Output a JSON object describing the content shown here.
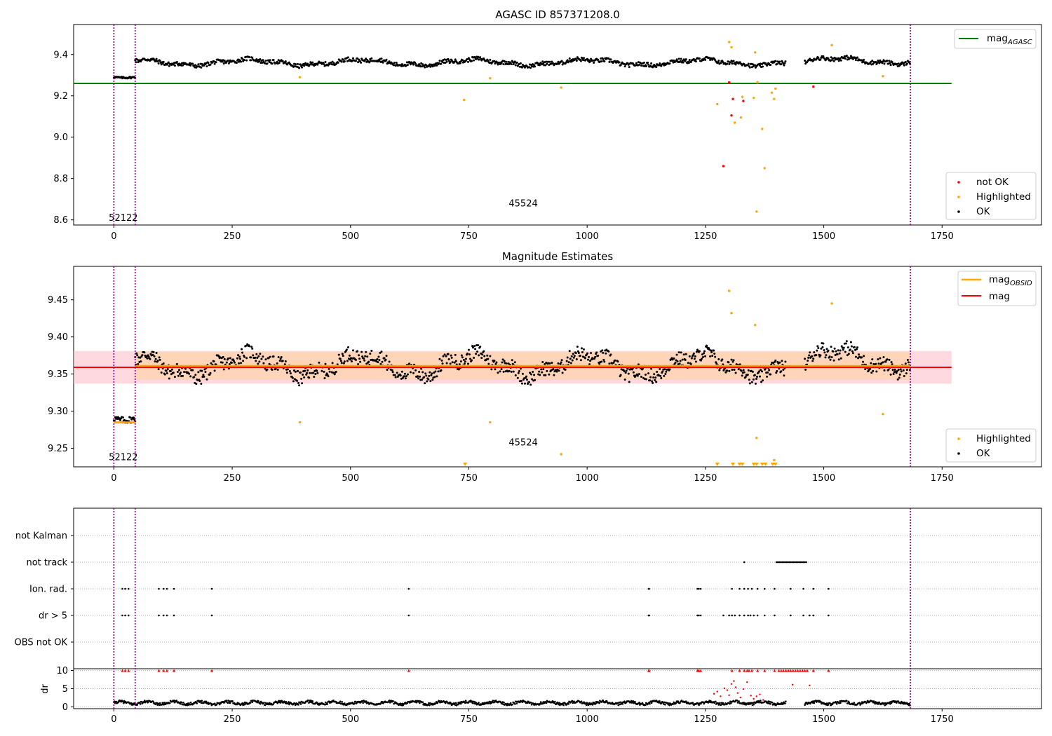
{
  "colors": {
    "ok": "#000000",
    "not_ok": "#ff0000",
    "highlighted": "#ffa500",
    "mag_agasc_line": "#008000",
    "mag_line": "#ff0000",
    "mag_obsid_line": "#ffa500",
    "obsid_divider": "#800080",
    "red_band": "#ffc0cb",
    "orange_band": "#ffd3b2",
    "grid": "#b0b0b0"
  },
  "chart_data": [
    {
      "type": "scatter",
      "title": "AGASC ID 857371208.0",
      "xlabel": "",
      "ylabel": "",
      "xlim": [
        -85,
        1960
      ],
      "ylim": [
        8.575,
        9.545
      ],
      "xticks": [
        0,
        250,
        500,
        750,
        1000,
        1250,
        1500,
        1750
      ],
      "yticks": [
        8.6,
        8.8,
        9.0,
        9.2,
        9.4
      ],
      "xtick_labels": [
        "0",
        "250",
        "500",
        "750",
        "1000",
        "1250",
        "1500",
        "1750"
      ],
      "ytick_labels": [
        "8.6",
        "8.8",
        "9.0",
        "9.2",
        "9.4"
      ],
      "hlines": [
        {
          "name": "mag_AGASC",
          "y": 9.26,
          "x": [
            -85,
            1770
          ]
        }
      ],
      "obsid_boundaries": [
        0,
        45,
        1683
      ],
      "obsid_labels": [
        {
          "text": "52122",
          "x": 20,
          "y": 8.595
        },
        {
          "text": "45524",
          "x": 865,
          "y": 8.665
        }
      ],
      "ok_series": {
        "name": "OK",
        "segments": [
          {
            "x": [
              0,
              45
            ],
            "base": 9.285,
            "amp": 0.01
          },
          {
            "x": [
              45,
              1420
            ],
            "base": 9.362,
            "amp": 0.022
          },
          {
            "x": [
              1460,
              1683
            ],
            "base": 9.37,
            "amp": 0.022
          }
        ]
      },
      "highlighted": {
        "name": "Highlighted",
        "x": [
          393,
          740,
          795,
          945,
          1275,
          1300,
          1305,
          1312,
          1325,
          1328,
          1352,
          1355,
          1358,
          1360,
          1370,
          1375,
          1390,
          1395,
          1398,
          1517,
          1625
        ],
        "y": [
          9.29,
          9.18,
          9.285,
          9.24,
          9.16,
          9.46,
          9.435,
          9.07,
          9.095,
          9.195,
          9.19,
          9.41,
          8.64,
          9.265,
          9.04,
          8.85,
          9.215,
          9.185,
          9.235,
          9.445,
          9.295
        ]
      },
      "not_ok": {
        "name": "not OK",
        "x": [
          1288,
          1300,
          1305,
          1308,
          1330,
          1478
        ],
        "y": [
          8.86,
          9.265,
          9.105,
          9.185,
          9.175,
          9.245
        ]
      },
      "legend_top": [
        {
          "label": "mag",
          "sub": "AGASC",
          "color": "#008000"
        }
      ],
      "legend_bottom": [
        "not OK",
        "Highlighted",
        "OK"
      ]
    },
    {
      "type": "scatter",
      "title": "Magnitude Estimates",
      "xlabel": "",
      "ylabel": "",
      "xlim": [
        -85,
        1960
      ],
      "ylim": [
        9.225,
        9.495
      ],
      "xticks": [
        0,
        250,
        500,
        750,
        1000,
        1250,
        1500,
        1750
      ],
      "yticks": [
        9.25,
        9.3,
        9.35,
        9.4,
        9.45
      ],
      "xtick_labels": [
        "0",
        "250",
        "500",
        "750",
        "1000",
        "1250",
        "1500",
        "1750"
      ],
      "ytick_labels": [
        "9.25",
        "9.30",
        "9.35",
        "9.40",
        "9.45"
      ],
      "mag": {
        "y": 9.359,
        "band": [
          9.337,
          9.381
        ],
        "x": [
          -85,
          1770
        ]
      },
      "mag_obsid": [
        {
          "x": [
            0,
            45
          ],
          "y": 9.285,
          "band": [
            9.283,
            9.288
          ]
        },
        {
          "x": [
            45,
            1683
          ],
          "y": 9.361,
          "band": [
            9.342,
            9.38
          ]
        }
      ],
      "obsid_boundaries": [
        0,
        45,
        1683
      ],
      "obsid_labels": [
        {
          "text": "52122",
          "x": 20,
          "y": 9.234
        },
        {
          "text": "45524",
          "x": 865,
          "y": 9.254
        }
      ],
      "highlighted": {
        "name": "Highlighted",
        "x": [
          393,
          795,
          945,
          1300,
          1305,
          1355,
          1358,
          1395,
          1517,
          1625
        ],
        "y": [
          9.285,
          9.285,
          9.242,
          9.462,
          9.432,
          9.416,
          9.264,
          9.234,
          9.445,
          9.296
        ]
      },
      "clipped_markers_x": [
        742,
        1275,
        1308,
        1322,
        1328,
        1352,
        1358,
        1370,
        1377,
        1392,
        1398
      ],
      "legend_top": [
        {
          "label": "mag",
          "sub": "OBSID",
          "color": "#ffa500"
        },
        {
          "label": "mag",
          "sub": "",
          "color": "#ff0000"
        }
      ],
      "legend_bottom": [
        "Highlighted",
        "OK"
      ]
    },
    {
      "type": "scatter",
      "title": "",
      "xlim": [
        -85,
        1960
      ],
      "categories": [
        "not Kalman",
        "not track",
        "Ion. rad.",
        "dr > 5",
        "OBS not OK"
      ],
      "flags": {
        "not Kalman": [],
        "not track": [
          1332,
          1400,
          1403,
          1406,
          1409,
          1412,
          1415,
          1418,
          1421,
          1424,
          1427,
          1430,
          1433,
          1436,
          1439,
          1442,
          1445,
          1448,
          1451,
          1454,
          1457,
          1460,
          1463
        ],
        "Ion. rad.": [
          18,
          24,
          31,
          95,
          105,
          112,
          127,
          207,
          623,
          1130,
          1131,
          1233,
          1236,
          1240,
          1306,
          1322,
          1332,
          1340,
          1348,
          1360,
          1375,
          1396,
          1430,
          1457,
          1478,
          1510
        ],
        "dr > 5": [
          18,
          24,
          31,
          95,
          105,
          112,
          127,
          207,
          623,
          1130,
          1131,
          1233,
          1236,
          1240,
          1288,
          1300,
          1306,
          1312,
          1322,
          1332,
          1340,
          1345,
          1352,
          1360,
          1375,
          1396,
          1430,
          1457,
          1470,
          1478,
          1510
        ],
        "OBS not OK": []
      },
      "dr_ylabel": "dr",
      "dr_ylim": [
        -0.5,
        10.5
      ],
      "dr_yticks": [
        0,
        5,
        10
      ],
      "dr_ytick_labels": [
        "0",
        "5",
        "10"
      ],
      "dr_red_clipped_x": [
        18,
        24,
        31,
        95,
        105,
        112,
        127,
        207,
        623,
        1130,
        1131,
        1233,
        1236,
        1240,
        1306,
        1322,
        1332,
        1338,
        1342,
        1348,
        1360,
        1375,
        1396,
        1405,
        1410,
        1415,
        1420,
        1425,
        1430,
        1435,
        1440,
        1445,
        1450,
        1455,
        1460,
        1465,
        1478,
        1510
      ],
      "dr_red_points": {
        "x": [
          1268,
          1275,
          1282,
          1290,
          1296,
          1300,
          1305,
          1310,
          1314,
          1318,
          1324,
          1330,
          1338,
          1346,
          1352,
          1358,
          1365,
          1372,
          1434,
          1470
        ],
        "y": [
          3.6,
          4.2,
          2.9,
          5.1,
          4.6,
          3.2,
          6.3,
          7.1,
          5.4,
          3.8,
          2.6,
          4.9,
          6.8,
          3.1,
          2.2,
          2.9,
          3.4,
          1.9,
          6.1,
          5.9
        ]
      },
      "dr_black": {
        "segments": [
          {
            "x": [
              0,
              1420
            ],
            "base": 1.1,
            "amp": 0.7
          },
          {
            "x": [
              1460,
              1683
            ],
            "base": 1.1,
            "amp": 0.7
          }
        ]
      }
    }
  ]
}
